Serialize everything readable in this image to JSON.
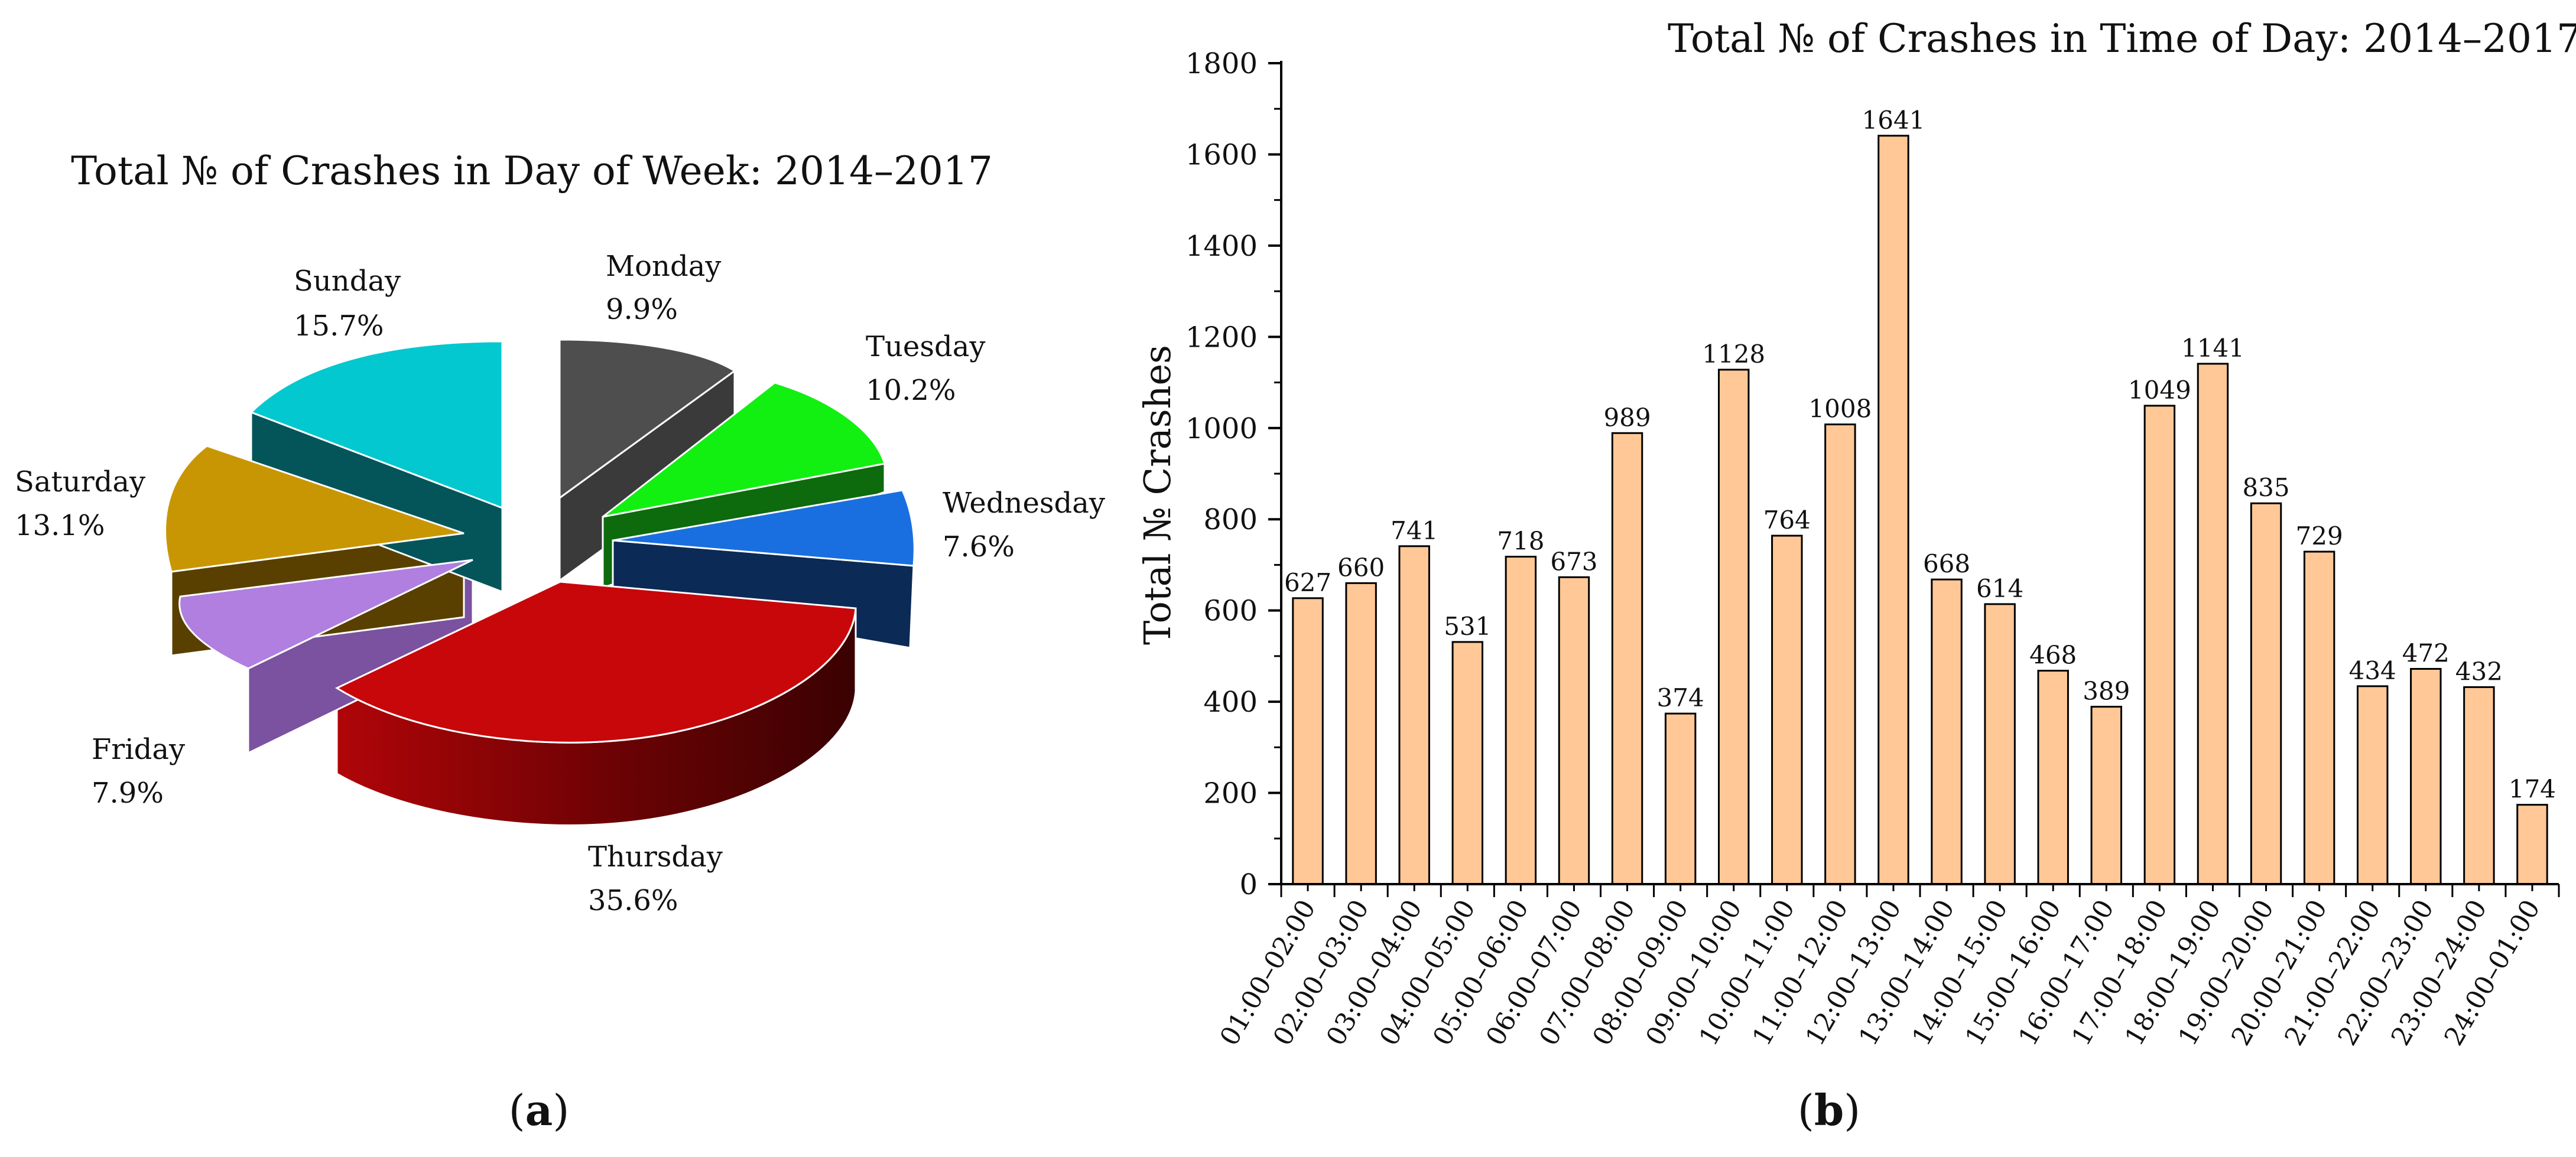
{
  "chart_data": [
    {
      "type": "pie",
      "title": "Total № of Crashes in Day of Week: 2014–2017",
      "panel_label": "a",
      "categories": [
        "Monday",
        "Tuesday",
        "Wednesday",
        "Thursday",
        "Friday",
        "Saturday",
        "Sunday"
      ],
      "values": [
        9.9,
        10.2,
        7.6,
        35.6,
        7.9,
        13.1,
        15.7
      ],
      "value_labels": [
        "9.9%",
        "10.2%",
        "7.6%",
        "35.6%",
        "7.9%",
        "13.1%",
        "15.7%"
      ],
      "colors": [
        "#4e4e4e",
        "#12f012",
        "#1a6fe0",
        "#c8070b",
        "#b07fe0",
        "#c99603",
        "#03c8cf"
      ],
      "style": "3d-exploded"
    },
    {
      "type": "bar",
      "title": "Total № of Crashes in Time of Day: 2014–2017",
      "panel_label": "b",
      "xlabel": "",
      "ylabel": "Total № Crashes",
      "ylim": [
        0,
        1800
      ],
      "yticks": [
        0,
        200,
        400,
        600,
        800,
        1000,
        1200,
        1400,
        1600,
        1800
      ],
      "categories": [
        "01:00–02:00",
        "02:00–03:00",
        "03:00–04:00",
        "04:00–05:00",
        "05:00–06:00",
        "06:00–07:00",
        "07:00–08:00",
        "08:00–09:00",
        "09:00–10:00",
        "10:00–11:00",
        "11:00–12:00",
        "12:00–13:00",
        "13:00–14:00",
        "14:00–15:00",
        "15:00–16:00",
        "16:00–17:00",
        "17:00–18:00",
        "18:00–19:00",
        "19:00–20:00",
        "20:00–21:00",
        "21:00–22:00",
        "22:00–23:00",
        "23:00–24:00",
        "24:00–01:00"
      ],
      "values": [
        627,
        660,
        741,
        531,
        718,
        673,
        989,
        374,
        1128,
        764,
        1008,
        1641,
        668,
        614,
        468,
        389,
        1049,
        1141,
        835,
        729,
        434,
        472,
        432,
        174
      ],
      "color": "#ffc896"
    }
  ]
}
